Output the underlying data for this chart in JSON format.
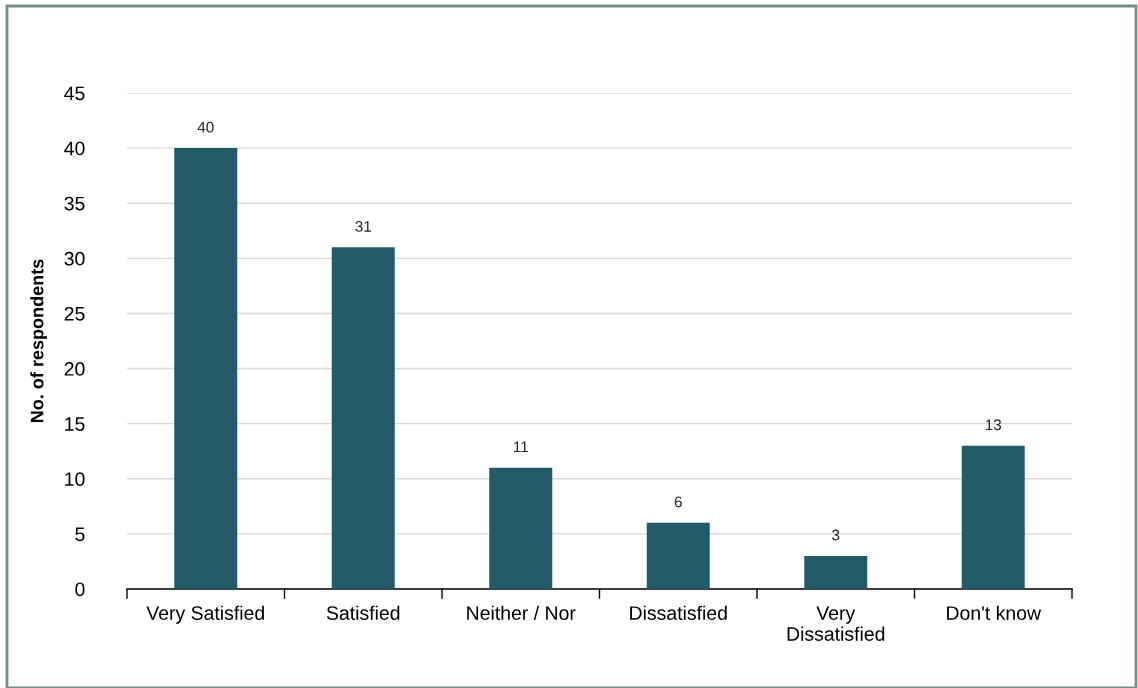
{
  "chart_data": {
    "type": "bar",
    "ylabel": "No. of respondents",
    "categories": [
      "Very Satisfied",
      "Satisfied",
      "Neither / Nor",
      "Dissatisfied",
      "Very\nDissatisfied",
      "Don't know"
    ],
    "values": [
      40,
      31,
      11,
      6,
      3,
      13
    ],
    "color": "#235a68",
    "ylim": [
      0,
      45
    ],
    "yticks": [
      0,
      5,
      10,
      15,
      20,
      25,
      30,
      35,
      40,
      45
    ],
    "grid": "y",
    "data_labels": true
  }
}
